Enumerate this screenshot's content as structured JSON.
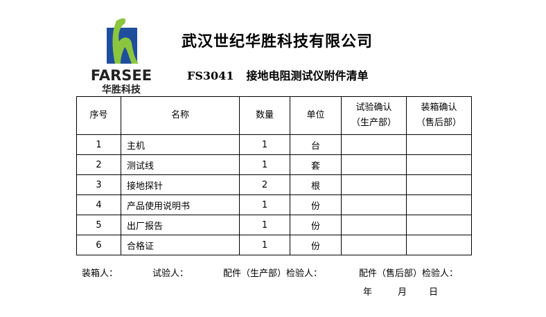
{
  "logo": {
    "brand": "FARSEE",
    "brand_cn": "华胜科技",
    "colors": {
      "blue": "#1f4e9c",
      "green": "#8cc63f"
    }
  },
  "title": "武汉世纪华胜科技有限公司",
  "subtitle": {
    "model": "FS3041",
    "text": "接地电阻测试仪附件清单"
  },
  "table": {
    "headers": [
      "序号",
      "名称",
      "数量",
      "单位",
      "试验确认\n（生产部）",
      "装箱确认\n（售后部）"
    ],
    "rows": [
      {
        "no": "1",
        "name": "主机",
        "qty": "1",
        "unit": "台"
      },
      {
        "no": "2",
        "name": "测试线",
        "qty": "1",
        "unit": "套"
      },
      {
        "no": "3",
        "name": "接地探针",
        "qty": "2",
        "unit": "根"
      },
      {
        "no": "4",
        "name": "产品使用说明书",
        "qty": "1",
        "unit": "份"
      },
      {
        "no": "5",
        "name": "出厂报告",
        "qty": "1",
        "unit": "份"
      },
      {
        "no": "6",
        "name": "合格证",
        "qty": "1",
        "unit": "份"
      }
    ]
  },
  "footer": {
    "packer": "装箱人：",
    "tester": "试验人：",
    "inspector_prod": "配件（生产部）检验人：",
    "inspector_after": "配件（售后部）检验人：",
    "year": "年",
    "month": "月",
    "day": "日"
  }
}
